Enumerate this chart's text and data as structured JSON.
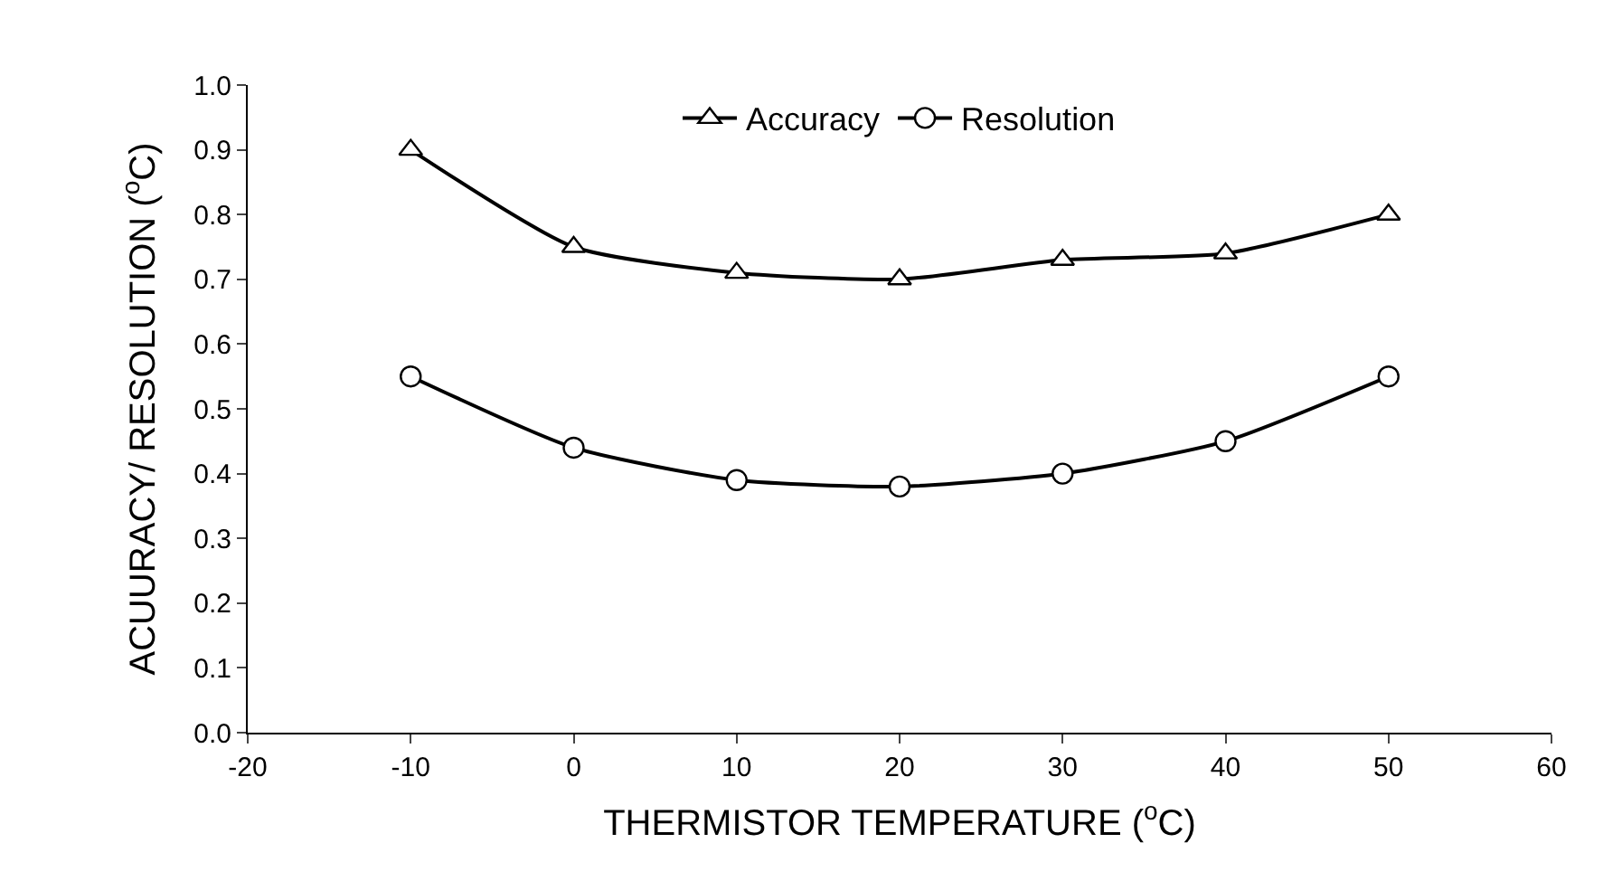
{
  "chart_data": {
    "type": "line",
    "xlabel": "THERMISTOR TEMPERATURE ($^{o}$C)",
    "ylabel": "ACUURACY/ RESOLUTION ($^{o}$C)",
    "x": [
      -10,
      0,
      10,
      20,
      30,
      40,
      50
    ],
    "series": [
      {
        "name": "Accuracy",
        "color": "#000000",
        "marker": "triangle",
        "values": [
          0.9,
          0.75,
          0.71,
          0.7,
          0.73,
          0.74,
          0.8
        ]
      },
      {
        "name": "Resolution",
        "color": "#000000",
        "marker": "circle",
        "values": [
          0.55,
          0.44,
          0.39,
          0.38,
          0.4,
          0.45,
          0.55
        ]
      }
    ],
    "xlim": [
      -20,
      60
    ],
    "xticks": [
      -20,
      -10,
      0,
      10,
      20,
      30,
      40,
      50,
      60
    ],
    "ylim": [
      0,
      1
    ],
    "yticks": [
      {
        "value": 0,
        "label": "0.0"
      },
      0.1,
      0.2,
      0.3,
      0.4,
      0.5,
      0.6,
      0.7,
      0.8,
      0.9,
      {
        "value": 1,
        "label": "1.0"
      }
    ],
    "legend": "top",
    "line_style": "solid"
  }
}
